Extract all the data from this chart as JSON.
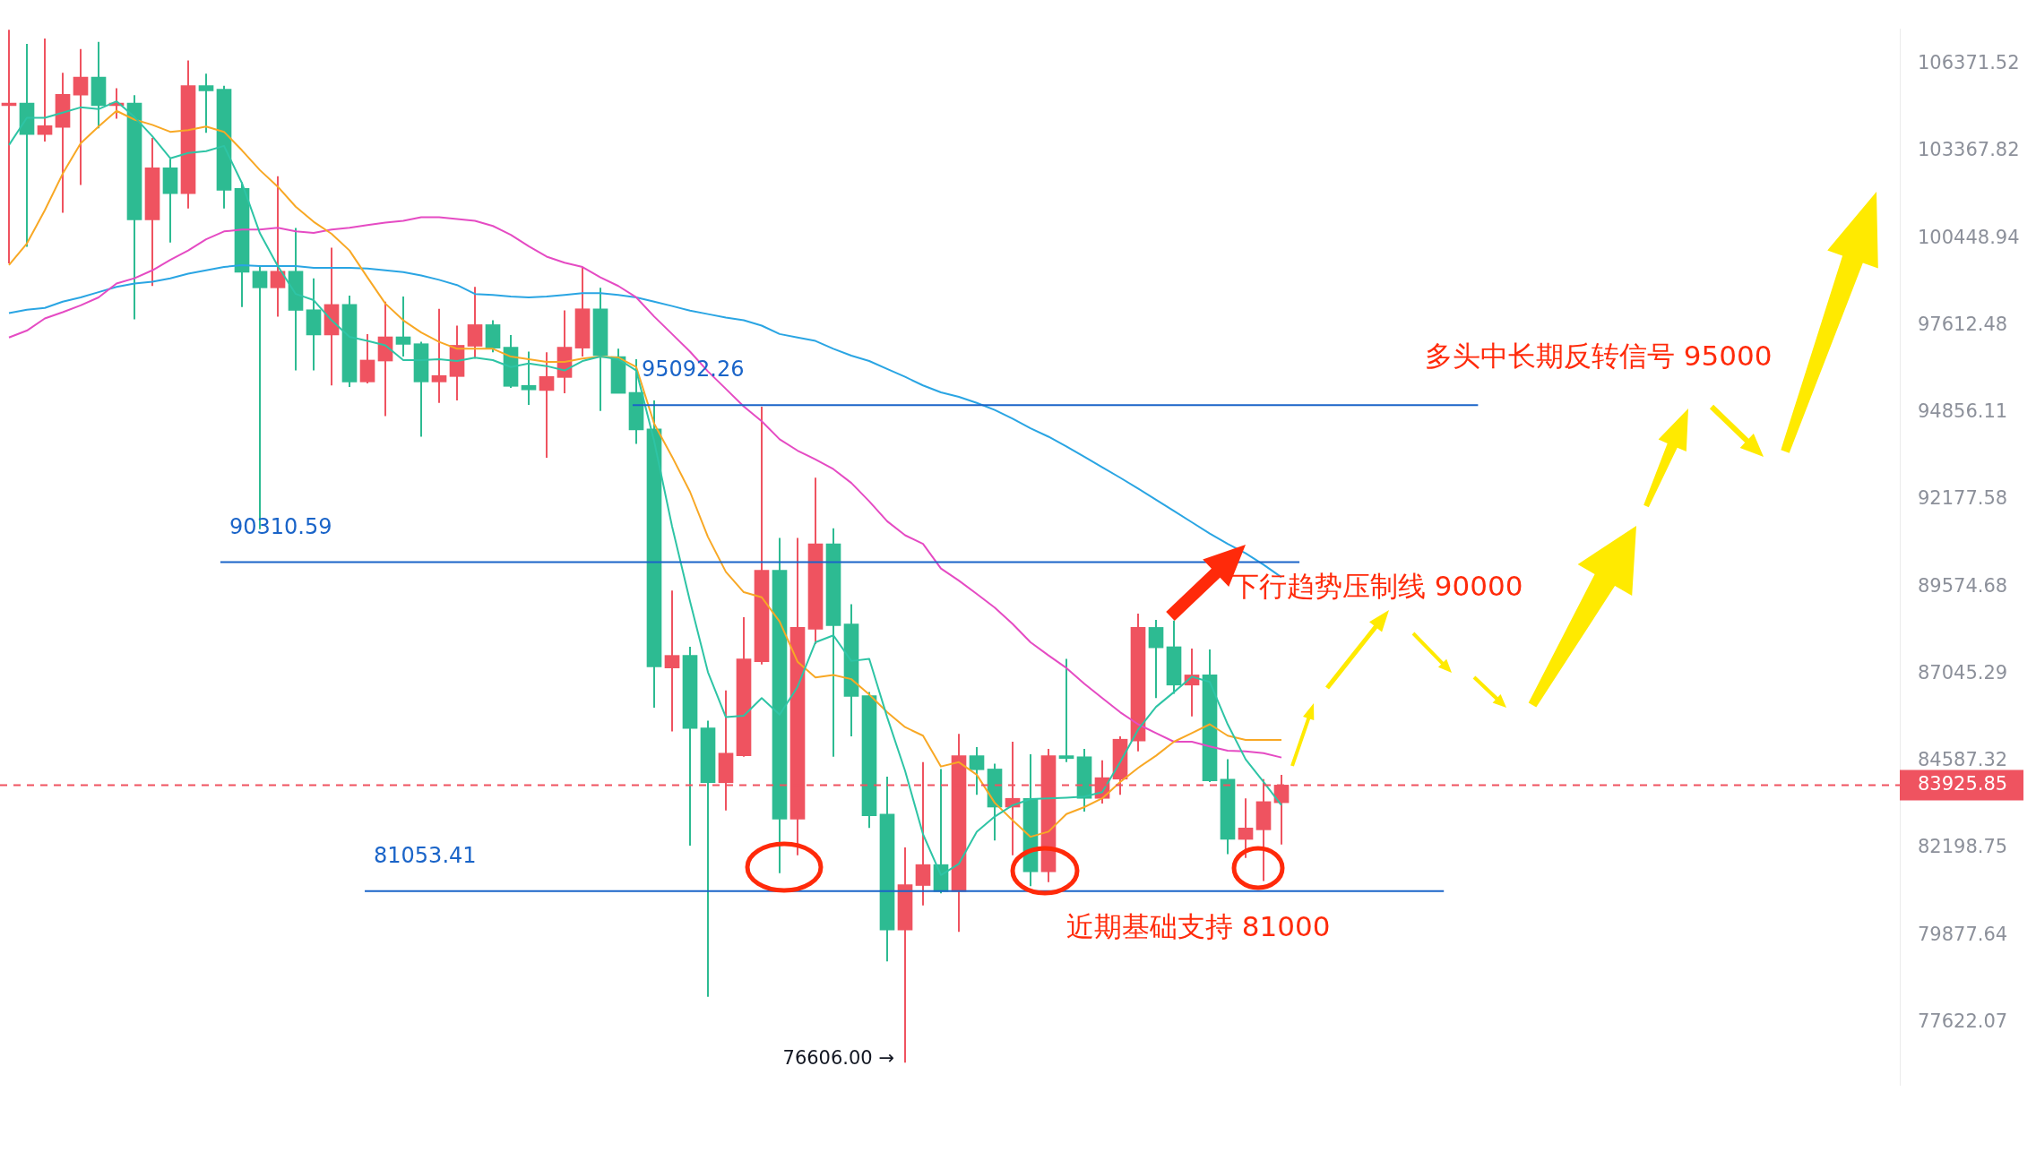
{
  "chart_data": {
    "type": "candlestick",
    "categories": [
      null,
      null,
      null,
      null,
      null,
      null,
      null,
      null,
      null,
      null,
      null,
      null,
      null,
      null,
      null,
      null,
      null,
      null,
      null,
      null,
      null,
      null,
      null,
      null,
      null,
      null,
      null,
      null,
      null,
      null,
      null,
      null,
      null,
      null,
      null,
      null,
      null,
      null,
      null,
      null,
      null,
      null,
      null,
      null,
      null,
      null,
      null,
      null,
      null,
      null,
      null,
      null,
      null,
      null,
      null,
      null,
      null,
      null,
      null,
      null,
      null,
      null,
      null,
      null,
      null,
      null,
      null,
      null,
      null,
      null,
      null,
      null,
      null,
      null,
      null,
      null,
      null,
      null,
      null,
      null,
      null,
      null,
      null,
      null,
      null,
      null,
      null,
      null,
      null,
      null,
      null,
      null,
      null,
      null,
      null,
      null,
      null,
      null,
      null,
      null,
      null,
      null,
      null,
      null,
      null,
      null
    ],
    "ohlc": [
      [
        104930,
        107580,
        99630,
        105020
      ],
      [
        105020,
        107080,
        100170,
        103940
      ],
      [
        103940,
        107270,
        103700,
        104240
      ],
      [
        104180,
        106070,
        101300,
        105320
      ],
      [
        105290,
        106900,
        102230,
        105920
      ],
      [
        105920,
        107150,
        104150,
        104930
      ],
      [
        104930,
        105530,
        104480,
        105020
      ],
      [
        105020,
        105290,
        97810,
        101060
      ],
      [
        101060,
        103820,
        98890,
        102810
      ],
      [
        102810,
        103110,
        100310,
        101940
      ],
      [
        101940,
        106500,
        101440,
        105620
      ],
      [
        105620,
        106040,
        104000,
        105440
      ],
      [
        105500,
        105620,
        101440,
        102050
      ],
      [
        102110,
        102320,
        98210,
        99340
      ],
      [
        99370,
        99510,
        91290,
        98830
      ],
      [
        98830,
        102520,
        97900,
        99370
      ],
      [
        99370,
        100790,
        96180,
        98100
      ],
      [
        98120,
        99140,
        96180,
        97310
      ],
      [
        97310,
        100140,
        95710,
        98290
      ],
      [
        98290,
        98580,
        95660,
        95820
      ],
      [
        95820,
        97340,
        95770,
        96510
      ],
      [
        96480,
        98380,
        94750,
        97250
      ],
      [
        97250,
        98550,
        96620,
        97010
      ],
      [
        97030,
        97090,
        94110,
        95820
      ],
      [
        95820,
        98150,
        95160,
        96020
      ],
      [
        95990,
        97610,
        95240,
        96980
      ],
      [
        96950,
        98860,
        96560,
        97640
      ],
      [
        97640,
        97780,
        96760,
        96890
      ],
      [
        96920,
        97310,
        95630,
        95680
      ],
      [
        95710,
        96780,
        95100,
        95570
      ],
      [
        95550,
        96760,
        93460,
        95990
      ],
      [
        95960,
        98100,
        95460,
        96920
      ],
      [
        96890,
        99510,
        96620,
        98150
      ],
      [
        98150,
        98830,
        94910,
        96650
      ],
      [
        96620,
        96870,
        95460,
        95460
      ],
      [
        95490,
        96540,
        93890,
        94320
      ],
      [
        94350,
        95240,
        86090,
        87250
      ],
      [
        87220,
        89470,
        85420,
        87580
      ],
      [
        87580,
        87830,
        82270,
        85500
      ],
      [
        85520,
        85720,
        78280,
        83990
      ],
      [
        83990,
        86580,
        83230,
        84810
      ],
      [
        84740,
        88690,
        84710,
        87480
      ],
      [
        87400,
        95040,
        87320,
        90070
      ],
      [
        90070,
        91030,
        81530,
        82990
      ],
      [
        82990,
        91030,
        82010,
        88390
      ],
      [
        88340,
        92850,
        87910,
        90850
      ],
      [
        90850,
        91320,
        84710,
        88440
      ],
      [
        88490,
        89070,
        85280,
        86410
      ],
      [
        86430,
        86530,
        82750,
        83080
      ],
      [
        83130,
        84160,
        79200,
        80020
      ],
      [
        80020,
        82220,
        76606,
        81220
      ],
      [
        81200,
        84560,
        80670,
        81760
      ],
      [
        81760,
        84370,
        80990,
        81040
      ],
      [
        81040,
        85350,
        79970,
        84740
      ],
      [
        84740,
        84980,
        83660,
        84350
      ],
      [
        84370,
        84520,
        82410,
        83320
      ],
      [
        83320,
        85130,
        82010,
        83560
      ],
      [
        83560,
        84780,
        81180,
        81570
      ],
      [
        81570,
        84930,
        81290,
        84740
      ],
      [
        84740,
        87480,
        84560,
        84660
      ],
      [
        84710,
        84930,
        83200,
        83560
      ],
      [
        83560,
        84610,
        83420,
        84130
      ],
      [
        84090,
        85280,
        83660,
        85200
      ],
      [
        85150,
        88790,
        84860,
        88390
      ],
      [
        88390,
        88610,
        86360,
        87800
      ],
      [
        87830,
        88590,
        86480,
        86730
      ],
      [
        86730,
        87780,
        85840,
        87020
      ],
      [
        87020,
        87750,
        84010,
        84040
      ],
      [
        84090,
        84640,
        82040,
        82440
      ],
      [
        82440,
        83560,
        81940,
        82750
      ],
      [
        82700,
        84090,
        81320,
        83470
      ],
      [
        83440,
        84210,
        82300,
        83925.85
      ],
      null,
      null,
      null,
      null,
      null,
      null,
      null,
      null,
      null,
      null,
      null,
      null,
      null,
      null,
      null,
      null,
      null,
      null,
      null,
      null,
      null,
      null,
      null,
      null,
      null,
      null,
      null,
      null,
      null,
      null,
      null,
      null,
      null,
      null
    ],
    "colors": [
      "#ef5360",
      "#2dbb92",
      "#ef5360",
      "#ef5360",
      "#ef5360",
      "#2dbb92",
      "#ef5360",
      "#2dbb92",
      "#ef5360",
      "#2dbb92",
      "#ef5360",
      "#2dbb92",
      "#2dbb92",
      "#2dbb92",
      "#2dbb92",
      "#ef5360",
      "#2dbb92",
      "#2dbb92",
      "#ef5360",
      "#2dbb92",
      "#ef5360",
      "#ef5360",
      "#2dbb92",
      "#2dbb92",
      "#ef5360",
      "#ef5360",
      "#ef5360",
      "#2dbb92",
      "#2dbb92",
      "#2dbb92",
      "#ef5360",
      "#ef5360",
      "#ef5360",
      "#2dbb92",
      "#2dbb92",
      "#2dbb92",
      "#2dbb92",
      "#ef5360",
      "#2dbb92",
      "#2dbb92",
      "#ef5360",
      "#ef5360",
      "#ef5360",
      "#2dbb92",
      "#ef5360",
      "#ef5360",
      "#2dbb92",
      "#2dbb92",
      "#2dbb92",
      "#2dbb92",
      "#ef5360",
      "#ef5360",
      "#2dbb92",
      "#ef5360",
      "#2dbb92",
      "#2dbb92",
      "#ef5360",
      "#2dbb92",
      "#ef5360",
      "#2dbb92",
      "#2dbb92",
      "#ef5360",
      "#ef5360",
      "#ef5360",
      "#2dbb92",
      "#2dbb92",
      "#ef5360",
      "#2dbb92",
      "#2dbb92",
      "#ef5360",
      "#ef5360",
      "#ef5360",
      null,
      null,
      null,
      null,
      null,
      null,
      null,
      null,
      null,
      null,
      null,
      null,
      null,
      null,
      null,
      null,
      null,
      null,
      null,
      null,
      null,
      null,
      null,
      null,
      null,
      null,
      null,
      null,
      null,
      null,
      null,
      null,
      null,
      null
    ],
    "series": [
      {
        "type": "line",
        "color": "#2ec4a5",
        "values": [
          103580,
          104510,
          104510,
          104690,
          104870,
          104810,
          105080,
          104540,
          103880,
          103130,
          103310,
          103370,
          103550,
          102290,
          100620,
          99540,
          98630,
          98430,
          97780,
          97250,
          97120,
          96980,
          96510,
          96510,
          96540,
          96480,
          96590,
          96510,
          96290,
          96400,
          96320,
          96180,
          96480,
          96620,
          96540,
          96180,
          93970,
          91370,
          89150,
          87100,
          85820,
          85860,
          86360,
          85890,
          86680,
          87960,
          88160,
          87420,
          87480,
          85820,
          84320,
          82580,
          81480,
          81780,
          82650,
          83060,
          83370,
          83540,
          83560,
          83580,
          83610,
          83730,
          84560,
          85470,
          86110,
          86530,
          86970,
          86820,
          85620,
          84640,
          84010,
          83370,
          null,
          null,
          null,
          null,
          null,
          null,
          null,
          null,
          null,
          null,
          null,
          null,
          null,
          null,
          null,
          null,
          null,
          null,
          null,
          null,
          null,
          null,
          null,
          null,
          null,
          null,
          null,
          null,
          null,
          null,
          null,
          null,
          null,
          null
        ]
      },
      {
        "type": "line",
        "color": "#f8a825",
        "values": [
          99570,
          100280,
          101380,
          102610,
          103640,
          104210,
          104750,
          104450,
          104270,
          104030,
          104090,
          104210,
          104030,
          103400,
          102730,
          102170,
          101500,
          101000,
          100600,
          100050,
          99170,
          98320,
          97780,
          97390,
          97090,
          96870,
          96870,
          96870,
          96620,
          96540,
          96450,
          96450,
          96560,
          96620,
          96590,
          96290,
          94510,
          93490,
          92420,
          91060,
          90020,
          89420,
          89270,
          88560,
          87400,
          86950,
          87020,
          86900,
          86460,
          85960,
          85540,
          85300,
          84440,
          84560,
          84210,
          83440,
          82960,
          82510,
          82650,
          83130,
          83320,
          83560,
          84010,
          84400,
          84740,
          85130,
          85370,
          85620,
          85300,
          85180,
          85180,
          85180,
          null,
          null,
          null,
          null,
          null,
          null,
          null,
          null,
          null,
          null,
          null,
          null,
          null,
          null,
          null,
          null,
          null,
          null,
          null,
          null,
          null,
          null,
          null,
          null,
          null,
          null,
          null,
          null,
          null,
          null,
          null,
          null,
          null,
          null
        ]
      },
      {
        "type": "line",
        "color": "#e54bc3",
        "values": [
          97230,
          97450,
          97840,
          98040,
          98260,
          98520,
          98970,
          99140,
          99400,
          99740,
          100050,
          100420,
          100680,
          100740,
          100740,
          100800,
          100680,
          100630,
          100740,
          100800,
          100890,
          100970,
          101030,
          101150,
          101150,
          101090,
          101030,
          100860,
          100570,
          100190,
          99850,
          99650,
          99510,
          99170,
          98890,
          98520,
          97900,
          97340,
          96780,
          96150,
          95600,
          95050,
          94590,
          94030,
          93680,
          93410,
          93110,
          92690,
          92130,
          91530,
          91110,
          90850,
          90120,
          89760,
          89370,
          88970,
          88490,
          87960,
          87580,
          87220,
          86770,
          86360,
          85960,
          85620,
          85370,
          85130,
          85130,
          85000,
          84880,
          84860,
          84810,
          84690,
          null,
          null,
          null,
          null,
          null,
          null,
          null,
          null,
          null,
          null,
          null,
          null,
          null,
          null,
          null,
          null,
          null,
          null,
          null,
          null,
          null,
          null,
          null,
          null,
          null,
          null,
          null,
          null,
          null,
          null,
          null,
          null,
          null,
          null
        ]
      },
      {
        "type": "line",
        "color": "#2aa5e3",
        "values": [
          98010,
          98120,
          98180,
          98380,
          98520,
          98690,
          98860,
          98970,
          99030,
          99140,
          99290,
          99400,
          99510,
          99570,
          99540,
          99540,
          99540,
          99480,
          99480,
          99480,
          99460,
          99400,
          99340,
          99230,
          99090,
          98920,
          98630,
          98600,
          98550,
          98520,
          98550,
          98600,
          98660,
          98660,
          98600,
          98520,
          98380,
          98240,
          98090,
          97980,
          97870,
          97780,
          97610,
          97340,
          97230,
          97120,
          96870,
          96650,
          96480,
          96230,
          95980,
          95710,
          95490,
          95350,
          95160,
          94940,
          94670,
          94370,
          94110,
          93810,
          93490,
          93170,
          92850,
          92520,
          92180,
          91840,
          91500,
          91160,
          90850,
          90570,
          90230,
          89860,
          null,
          null,
          null,
          null,
          null,
          null,
          null,
          null,
          null,
          null,
          null,
          null,
          null,
          null,
          null,
          null,
          null,
          null,
          null,
          null,
          null,
          null,
          null,
          null,
          null,
          null,
          null,
          null,
          null,
          null,
          null,
          null,
          null,
          null
        ]
      }
    ],
    "ylim": [
      76050,
      107600
    ],
    "yticks": [
      106371.52,
      103367.82,
      100448.94,
      97612.48,
      94856.11,
      92177.58,
      89574.68,
      87045.29,
      84587.32,
      82198.75,
      79877.64,
      77622.07
    ],
    "log": "y",
    "tick_labels": "y",
    "ref_lines": [
      {
        "axis": "y",
        "value": 95092.26,
        "label": "95092.26",
        "color": "#1a64c8"
      },
      {
        "axis": "y",
        "value": 90310.59,
        "label": "90310.59",
        "color": "#1a64c8"
      },
      {
        "axis": "y",
        "value": 81053.41,
        "label": "81053.41",
        "color": "#1a64c8"
      },
      {
        "axis": "y",
        "value": 83925.85,
        "label": "83925.85",
        "color": "#ef5360",
        "line_style": "dashed"
      }
    ],
    "annotations": [
      "多头中长期反转信号 95000",
      "下行趋势压制线 90000",
      "近期基础支持 81000",
      "76606.00 →"
    ]
  }
}
